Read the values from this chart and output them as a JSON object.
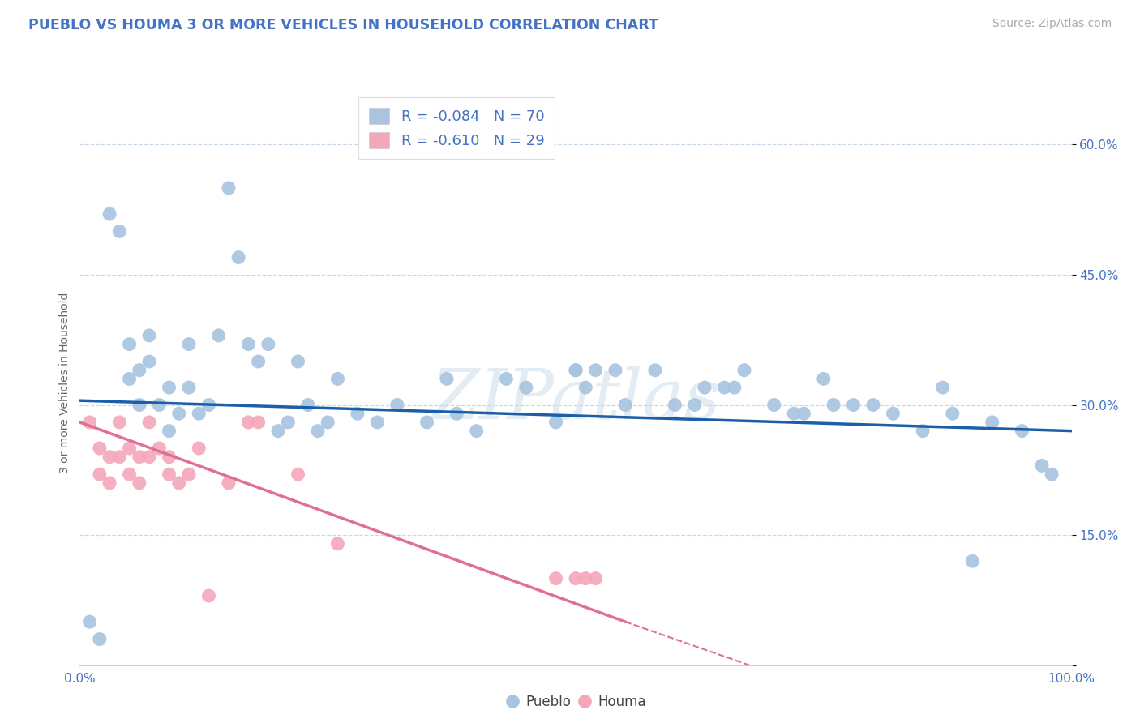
{
  "title": "PUEBLO VS HOUMA 3 OR MORE VEHICLES IN HOUSEHOLD CORRELATION CHART",
  "source_text": "Source: ZipAtlas.com",
  "ylabel": "3 or more Vehicles in Household",
  "xlim": [
    0,
    100
  ],
  "ylim": [
    0,
    65
  ],
  "pueblo_R": -0.084,
  "pueblo_N": 70,
  "houma_R": -0.61,
  "houma_N": 29,
  "pueblo_color": "#a8c4e0",
  "houma_color": "#f4a7b9",
  "pueblo_line_color": "#1a5fa8",
  "houma_line_color": "#e07090",
  "background_color": "#ffffff",
  "grid_color": "#c8d8e8",
  "watermark": "ZIPatlas",
  "pueblo_scatter_x": [
    1,
    2,
    3,
    4,
    5,
    5,
    6,
    6,
    7,
    7,
    8,
    9,
    9,
    10,
    11,
    11,
    12,
    13,
    14,
    15,
    16,
    17,
    18,
    19,
    20,
    21,
    22,
    23,
    24,
    25,
    26,
    28,
    30,
    32,
    35,
    37,
    38,
    40,
    43,
    45,
    48,
    50,
    50,
    51,
    52,
    54,
    55,
    58,
    60,
    62,
    63,
    65,
    66,
    67,
    70,
    72,
    73,
    75,
    76,
    78,
    80,
    82,
    85,
    87,
    88,
    90,
    92,
    95,
    97,
    98
  ],
  "pueblo_scatter_y": [
    5,
    3,
    52,
    50,
    33,
    37,
    34,
    30,
    35,
    38,
    30,
    32,
    27,
    29,
    32,
    37,
    29,
    30,
    38,
    55,
    47,
    37,
    35,
    37,
    27,
    28,
    35,
    30,
    27,
    28,
    33,
    29,
    28,
    30,
    28,
    33,
    29,
    27,
    33,
    32,
    28,
    34,
    34,
    32,
    34,
    34,
    30,
    34,
    30,
    30,
    32,
    32,
    32,
    34,
    30,
    29,
    29,
    33,
    30,
    30,
    30,
    29,
    27,
    32,
    29,
    12,
    28,
    27,
    23,
    22
  ],
  "houma_scatter_x": [
    1,
    2,
    2,
    3,
    3,
    4,
    4,
    5,
    5,
    6,
    6,
    7,
    7,
    8,
    9,
    9,
    10,
    11,
    12,
    13,
    15,
    17,
    18,
    22,
    26,
    48,
    50,
    51,
    52
  ],
  "houma_scatter_y": [
    28,
    25,
    22,
    24,
    21,
    24,
    28,
    22,
    25,
    21,
    24,
    28,
    24,
    25,
    22,
    24,
    21,
    22,
    25,
    8,
    21,
    28,
    28,
    22,
    14,
    10,
    10,
    10,
    10
  ],
  "pueblo_line_x0": 0,
  "pueblo_line_x1": 100,
  "pueblo_line_y0": 30.5,
  "pueblo_line_y1": 27.0,
  "houma_line_x0": 0,
  "houma_line_x1": 55,
  "houma_line_y0": 28.0,
  "houma_line_y1": 5.0,
  "houma_dash_x0": 55,
  "houma_dash_x1": 70,
  "houma_dash_y0": 5.0,
  "houma_dash_y1": -1.0,
  "ytick_positions": [
    0,
    15,
    30,
    45,
    60
  ],
  "ytick_labels": [
    "",
    "15.0%",
    "30.0%",
    "45.0%",
    "60.0%"
  ],
  "xtick_positions": [
    0,
    10,
    20,
    30,
    40,
    50,
    60,
    70,
    80,
    90,
    100
  ],
  "xtick_labels": [
    "0.0%",
    "",
    "",
    "",
    "",
    "",
    "",
    "",
    "",
    "",
    "100.0%"
  ]
}
